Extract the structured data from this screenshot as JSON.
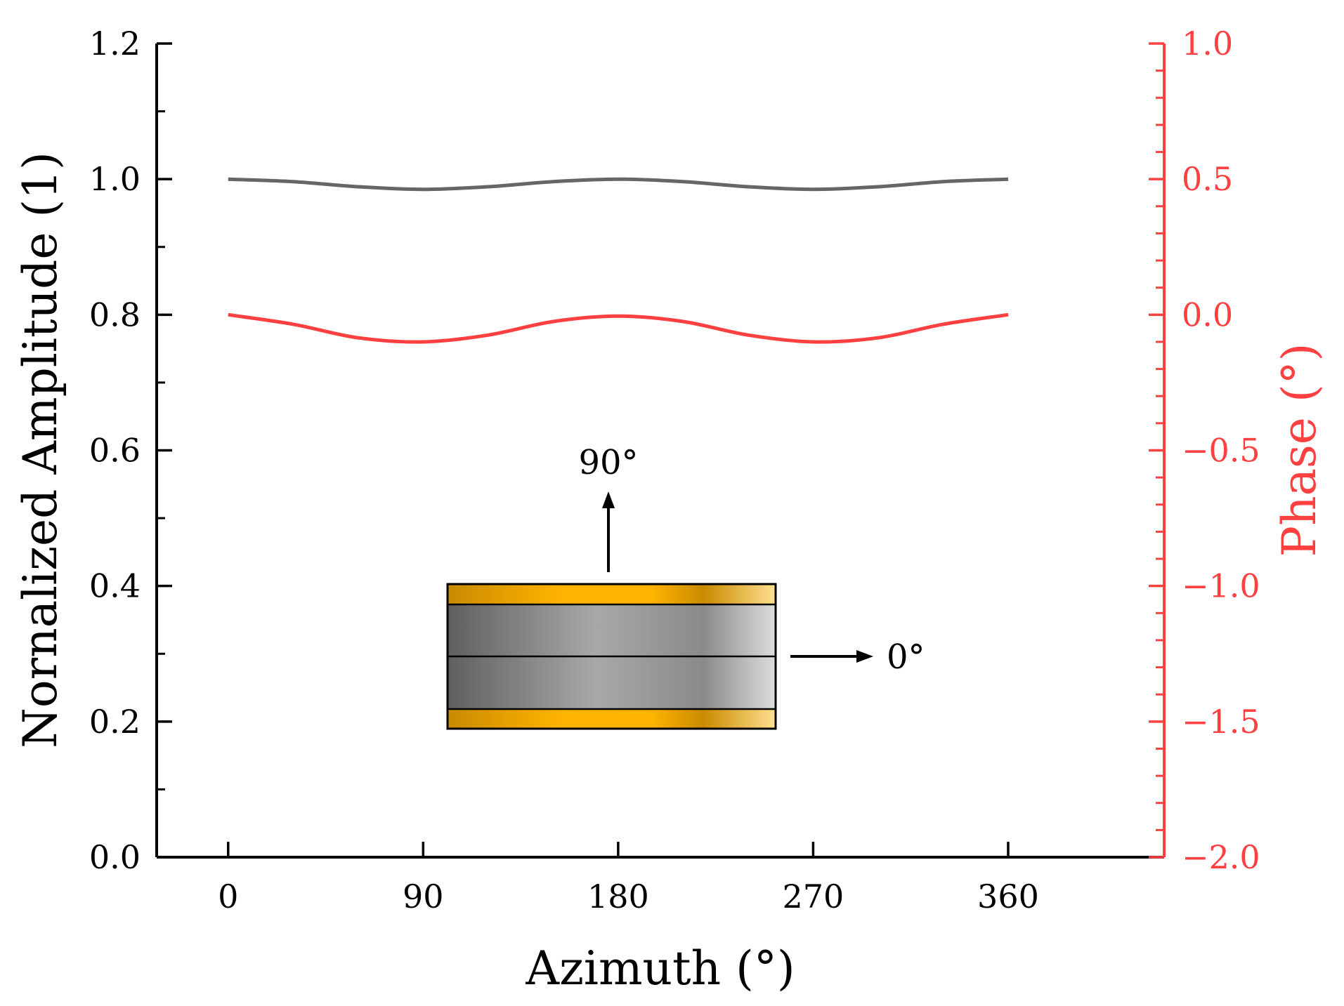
{
  "chart_data": {
    "type": "line",
    "xlabel": "Azimuth (°)",
    "ylabel_left": "Nornalized Amplitude (1)",
    "ylabel_right": "Phase (°)",
    "xlim": [
      -33,
      432
    ],
    "xticks": [
      0,
      90,
      180,
      270,
      360
    ],
    "xtick_labels": [
      "0",
      "90",
      "180",
      "270",
      "360"
    ],
    "ylim_left": [
      0,
      1.2
    ],
    "yticks_left": [
      0,
      0.2,
      0.4,
      0.6,
      0.8,
      1.0,
      1.2
    ],
    "ytick_labels_left": [
      "0.0",
      "0.2",
      "0.4",
      "0.6",
      "0.8",
      "1.0",
      "1.2"
    ],
    "ylim_right": [
      -2.0,
      1.0
    ],
    "yticks_right": [
      -2.0,
      -1.5,
      -1.0,
      -0.5,
      0.0,
      0.5,
      1.0
    ],
    "ytick_labels_right": [
      "−2.0",
      "−1.5",
      "−1.0",
      "−0.5",
      "0.0",
      "0.5",
      "1.0"
    ],
    "series": [
      {
        "name": "Amplitude",
        "axis": "left",
        "color": "#666666",
        "x": [
          0,
          30,
          60,
          90,
          120,
          150,
          180,
          210,
          240,
          270,
          300,
          330,
          360
        ],
        "values": [
          1.0,
          0.9963,
          0.9888,
          0.985,
          0.9888,
          0.9963,
          1.0,
          0.9963,
          0.9888,
          0.985,
          0.9888,
          0.9963,
          1.0
        ]
      },
      {
        "name": "Phase",
        "axis": "right",
        "color": "#ff4040",
        "x": [
          0,
          30,
          60,
          90,
          120,
          150,
          180,
          210,
          240,
          270,
          300,
          330,
          360
        ],
        "values": [
          0.0,
          -0.035,
          -0.085,
          -0.1,
          -0.075,
          -0.025,
          -0.005,
          -0.025,
          -0.075,
          -0.1,
          -0.085,
          -0.035,
          0.0
        ]
      }
    ],
    "inset": {
      "up_label": "90°",
      "right_label": "0°",
      "gold_color": "#ffb400",
      "steel_color": "#999999"
    }
  }
}
